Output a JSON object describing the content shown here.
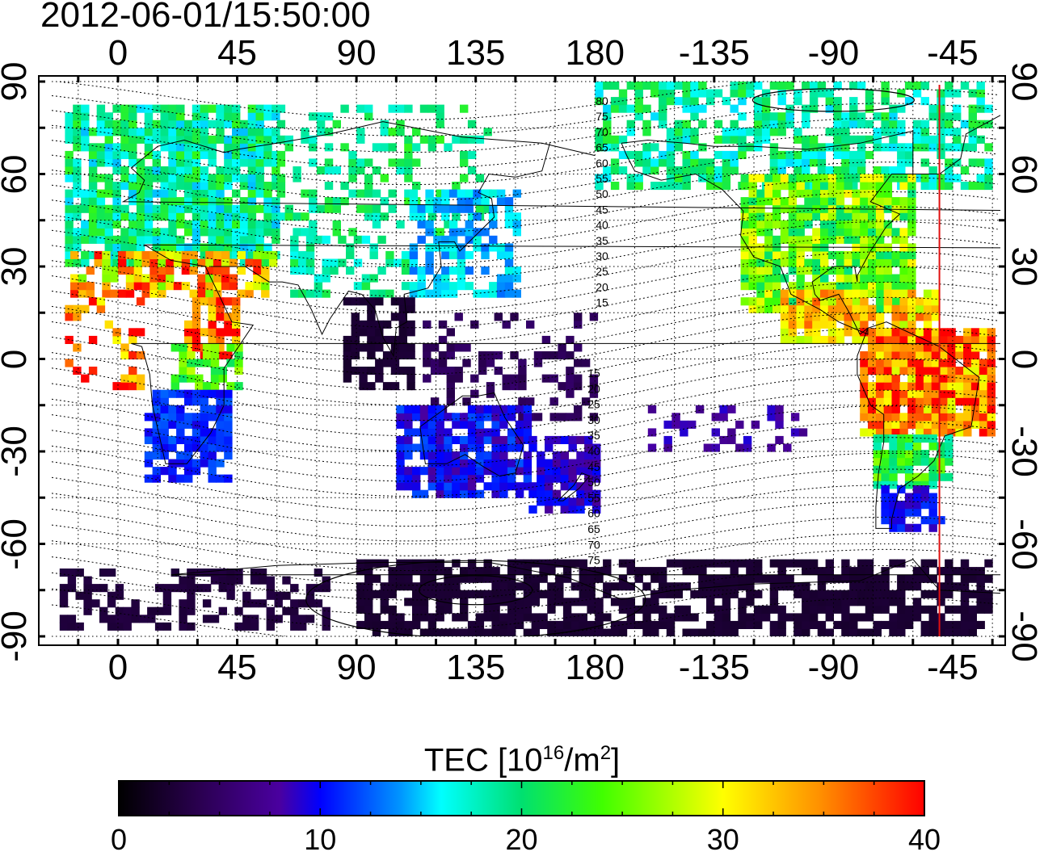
{
  "title": "2012-06-01/15:50:00",
  "map": {
    "x_ticks": [
      "0",
      "45",
      "90",
      "135",
      "180",
      "-135",
      "-90",
      "-45"
    ],
    "y_ticks": [
      "90",
      "60",
      "30",
      "0",
      "-30",
      "-60",
      "-90"
    ],
    "longitude_range_east": [
      -25,
      333
    ],
    "latitude_range": [
      -90,
      90
    ],
    "marker_longitude": -50,
    "marker_color": "#e01010",
    "contour_labels_north": [
      "80",
      "75",
      "70",
      "65",
      "60",
      "55",
      "50",
      "45",
      "40",
      "35",
      "30",
      "25",
      "20",
      "15"
    ],
    "contour_labels_south": [
      "15",
      "20",
      "25",
      "30",
      "35",
      "40",
      "45",
      "50",
      "55",
      "60",
      "65",
      "70",
      "75"
    ]
  },
  "colorbar": {
    "title_prefix": "TEC  [10",
    "title_sup1": "16",
    "title_mid": "/m",
    "title_sup2": "2",
    "title_suffix": "]",
    "ticks": [
      "0",
      "10",
      "20",
      "30",
      "40"
    ],
    "range": [
      0,
      40
    ],
    "colors": [
      "#000000",
      "#2a0050",
      "#4a00a0",
      "#0000ff",
      "#0096ff",
      "#00ffff",
      "#00e070",
      "#40ff00",
      "#ffff00",
      "#ff9000",
      "#ff0000"
    ]
  }
}
